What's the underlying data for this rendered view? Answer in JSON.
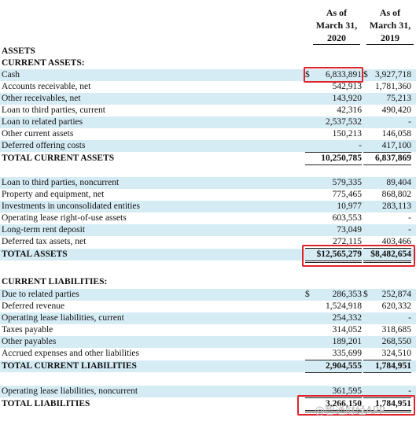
{
  "headers": {
    "col2020": [
      "As of",
      "March 31,",
      "2020"
    ],
    "col2019": [
      "As of",
      "March 31,",
      "2019"
    ]
  },
  "sections": {
    "assets": "ASSETS",
    "current_assets": "CURRENT ASSETS:",
    "current_liabilities": "CURRENT LIABILITIES:"
  },
  "rows": [
    {
      "label": "Cash",
      "v2020": "6,833,891",
      "v2019": "3,927,718",
      "d1": "$",
      "d2": "$"
    },
    {
      "label": "Accounts receivable, net",
      "v2020": "542,913",
      "v2019": "1,781,360"
    },
    {
      "label": "Other receivables, net",
      "v2020": "143,920",
      "v2019": "75,213"
    },
    {
      "label": "Loan to third parties, current",
      "v2020": "42,316",
      "v2019": "490,420"
    },
    {
      "label": "Loan to related parties",
      "v2020": "2,537,532",
      "v2019": "-"
    },
    {
      "label": "Other current assets",
      "v2020": "150,213",
      "v2019": "146,058"
    },
    {
      "label": "Deferred offering costs",
      "v2020": "-",
      "v2019": "417,100"
    },
    {
      "label": "TOTAL CURRENT ASSETS",
      "v2020": "10,250,785",
      "v2019": "6,837,869"
    },
    {
      "label": "Loan to third parties, noncurrent",
      "v2020": "579,335",
      "v2019": "89,404"
    },
    {
      "label": "Property and equipment, net",
      "v2020": "775,465",
      "v2019": "868,802"
    },
    {
      "label": "Investments in unconsolidated entities",
      "v2020": "10,977",
      "v2019": "283,113"
    },
    {
      "label": "Operating lease right-of-use assets",
      "v2020": "603,553",
      "v2019": "-"
    },
    {
      "label": "Long-term rent deposit",
      "v2020": "73,049",
      "v2019": "-"
    },
    {
      "label": "Deferred tax assets, net",
      "v2020": "272,115",
      "v2019": "403,466"
    },
    {
      "label": "TOTAL ASSETS",
      "v2020": "$12,565,279",
      "v2019": "$8,482,654"
    },
    {
      "label": "Due to related parties",
      "v2020": "286,353",
      "v2019": "252,874",
      "d1": "$",
      "d2": "$"
    },
    {
      "label": "Deferred revenue",
      "v2020": "1,524,918",
      "v2019": "620,332"
    },
    {
      "label": "Operating lease liabilities, current",
      "v2020": "254,332",
      "v2019": "-"
    },
    {
      "label": "Taxes payable",
      "v2020": "314,052",
      "v2019": "318,685"
    },
    {
      "label": "Other payables",
      "v2020": "189,201",
      "v2019": "268,550"
    },
    {
      "label": "Accrued expenses and other liabilities",
      "v2020": "335,699",
      "v2019": "324,510"
    },
    {
      "label": "TOTAL CURRENT LIABILITIES",
      "v2020": "2,904,555",
      "v2019": "1,784,951"
    },
    {
      "label": "Operating lease liabilities, noncurrent",
      "v2020": "361,595",
      "v2019": "-"
    },
    {
      "label": "TOTAL LIABILITIES",
      "v2020": "3,266,150",
      "v2019": "1,784,951"
    }
  ],
  "watermark": "@智通财经APP",
  "colors": {
    "highlight_box": "#e0242b",
    "row_shade": "#d6ecf5"
  }
}
